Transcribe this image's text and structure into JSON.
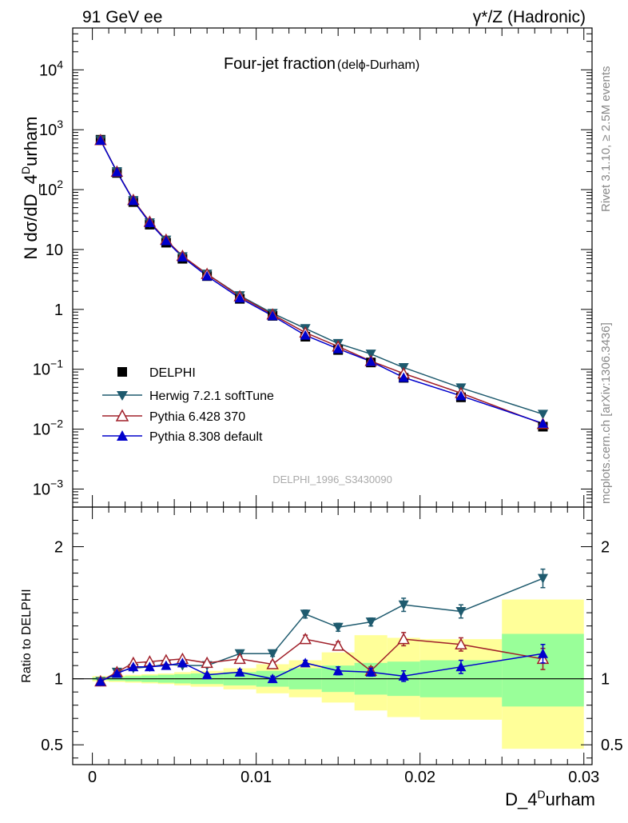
{
  "header": {
    "left": "91 GeV ee",
    "right": "γ*/Z (Hadronic)"
  },
  "side_text": {
    "top": "Rivet 3.1.10, ≥ 2.5M events",
    "bottom": "mcplots.cern.ch [arXiv:1306.3436]"
  },
  "watermark": "DELPHI_1996_S3430090",
  "colors": {
    "delphi": "#000000",
    "herwig": "#1e5a6e",
    "pythia6": "#a0202a",
    "pythia8": "#0000cc",
    "band_outer": "#ffff99",
    "band_inner": "#99ff99"
  },
  "chart_data": [
    {
      "type": "scatter",
      "title": "Four-jet fraction",
      "title_sub": "(delϕ-Durham)",
      "ylabel_main": "N dσ/dD_4",
      "ylabel_sup": "D",
      "ylabel_tail": "urham",
      "yscale": "log",
      "ylim": [
        0.0005,
        50000
      ],
      "xlim": [
        -0.0012,
        0.0305
      ],
      "y_ticks": [
        {
          "v": 10000,
          "base": "10",
          "exp": "4"
        },
        {
          "v": 1000,
          "base": "10",
          "exp": "3"
        },
        {
          "v": 100,
          "base": "10",
          "exp": "2"
        },
        {
          "v": 10,
          "base": "10",
          "exp": ""
        },
        {
          "v": 1,
          "base": "1",
          "exp": ""
        },
        {
          "v": 0.1,
          "base": "10",
          "exp": "−1"
        },
        {
          "v": 0.01,
          "base": "10",
          "exp": "−2"
        },
        {
          "v": 0.001,
          "base": "10",
          "exp": "−3"
        }
      ],
      "legend_position": "bottom-left",
      "series": [
        {
          "name": "DELPHI",
          "marker": "square",
          "x": [
            0.0005,
            0.0015,
            0.0025,
            0.0035,
            0.0045,
            0.0055,
            0.007,
            0.009,
            0.011,
            0.013,
            0.015,
            0.017,
            0.019,
            0.0225,
            0.0275
          ],
          "y": [
            680,
            190,
            62,
            26,
            13,
            7.0,
            3.6,
            1.5,
            0.78,
            0.35,
            0.21,
            0.13,
            0.072,
            0.034,
            0.011
          ]
        },
        {
          "name": "Herwig 7.2.1 softTune",
          "marker": "triangle-down",
          "x": [
            0.0005,
            0.0015,
            0.0025,
            0.0035,
            0.0045,
            0.0055,
            0.007,
            0.009,
            0.011,
            0.013,
            0.015,
            0.017,
            0.019,
            0.0225,
            0.0275
          ],
          "y": [
            670,
            200,
            66,
            28,
            14.4,
            7.6,
            3.9,
            1.7,
            0.86,
            0.48,
            0.27,
            0.18,
            0.107,
            0.049,
            0.0178
          ]
        },
        {
          "name": "Pythia 6.428 370",
          "marker": "triangle-up-open",
          "x": [
            0.0005,
            0.0015,
            0.0025,
            0.0035,
            0.0045,
            0.0055,
            0.007,
            0.009,
            0.011,
            0.013,
            0.015,
            0.017,
            0.019,
            0.0225,
            0.0275
          ],
          "y": [
            670,
            199,
            67,
            29,
            14.5,
            7.8,
            3.9,
            1.65,
            0.82,
            0.41,
            0.24,
            0.137,
            0.085,
            0.04,
            0.0122
          ]
        },
        {
          "name": "Pythia 8.308 default",
          "marker": "triangle-up",
          "x": [
            0.0005,
            0.0015,
            0.0025,
            0.0035,
            0.0045,
            0.0055,
            0.007,
            0.009,
            0.011,
            0.013,
            0.015,
            0.017,
            0.019,
            0.0225,
            0.0275
          ],
          "y": [
            665,
            197,
            65.5,
            28,
            14,
            7.5,
            3.6,
            1.55,
            0.78,
            0.37,
            0.22,
            0.135,
            0.073,
            0.036,
            0.0125
          ]
        }
      ]
    },
    {
      "type": "scatter",
      "ylabel": "Ratio to DELPHI",
      "xlabel_main": "D_4",
      "xlabel_sup": "D",
      "xlabel_tail": "urham",
      "ylim": [
        0.35,
        2.3
      ],
      "xlim": [
        -0.0012,
        0.0305
      ],
      "x_ticks": [
        0,
        0.01,
        0.02,
        0.03
      ],
      "x_tick_labels": [
        "0",
        "0.01",
        "0.02",
        "0.03"
      ],
      "y_ticks": [
        0.5,
        1,
        2
      ],
      "y_tick_labels": [
        "0.5",
        "1",
        "2"
      ],
      "bands": {
        "edges": [
          0,
          0.001,
          0.002,
          0.003,
          0.004,
          0.005,
          0.006,
          0.008,
          0.01,
          0.012,
          0.014,
          0.016,
          0.018,
          0.02,
          0.025,
          0.03
        ],
        "outer_low": [
          0.98,
          0.975,
          0.97,
          0.965,
          0.96,
          0.95,
          0.94,
          0.92,
          0.89,
          0.86,
          0.82,
          0.76,
          0.71,
          0.69,
          0.47
        ],
        "outer_high": [
          1.02,
          1.025,
          1.03,
          1.035,
          1.04,
          1.05,
          1.06,
          1.08,
          1.11,
          1.14,
          1.2,
          1.33,
          1.31,
          1.3,
          1.6
        ],
        "inner_low": [
          0.99,
          0.985,
          0.98,
          0.975,
          0.97,
          0.965,
          0.96,
          0.95,
          0.94,
          0.92,
          0.9,
          0.88,
          0.87,
          0.86,
          0.79
        ],
        "inner_high": [
          1.01,
          1.015,
          1.02,
          1.025,
          1.03,
          1.035,
          1.04,
          1.05,
          1.06,
          1.08,
          1.1,
          1.12,
          1.13,
          1.14,
          1.34
        ]
      },
      "series": [
        {
          "name": "Herwig 7.2.1 softTune",
          "x": [
            0.0005,
            0.0015,
            0.0025,
            0.0035,
            0.0045,
            0.0055,
            0.007,
            0.009,
            0.011,
            0.013,
            0.015,
            0.017,
            0.019,
            0.0225,
            0.0275
          ],
          "y": [
            0.98,
            1.05,
            1.08,
            1.09,
            1.11,
            1.1,
            1.1,
            1.19,
            1.19,
            1.49,
            1.39,
            1.43,
            1.56,
            1.51,
            1.76
          ],
          "err": [
            0.01,
            0.01,
            0.01,
            0.01,
            0.01,
            0.01,
            0.01,
            0.02,
            0.02,
            0.03,
            0.03,
            0.03,
            0.05,
            0.05,
            0.07
          ]
        },
        {
          "name": "Pythia 6.428 370",
          "x": [
            0.0005,
            0.0015,
            0.0025,
            0.0035,
            0.0045,
            0.0055,
            0.007,
            0.009,
            0.011,
            0.013,
            0.015,
            0.017,
            0.019,
            0.0225,
            0.0275
          ],
          "y": [
            0.98,
            1.05,
            1.12,
            1.13,
            1.14,
            1.15,
            1.12,
            1.15,
            1.11,
            1.3,
            1.25,
            1.06,
            1.3,
            1.26,
            1.15
          ],
          "err": [
            0.01,
            0.01,
            0.01,
            0.01,
            0.01,
            0.01,
            0.01,
            0.02,
            0.02,
            0.03,
            0.03,
            0.03,
            0.05,
            0.05,
            0.08
          ]
        },
        {
          "name": "Pythia 8.308 default",
          "x": [
            0.0005,
            0.0015,
            0.0025,
            0.0035,
            0.0045,
            0.0055,
            0.007,
            0.009,
            0.011,
            0.013,
            0.015,
            0.017,
            0.019,
            0.0225,
            0.0275
          ],
          "y": [
            0.98,
            1.04,
            1.09,
            1.09,
            1.1,
            1.12,
            1.03,
            1.05,
            1.0,
            1.12,
            1.06,
            1.05,
            1.02,
            1.09,
            1.19
          ],
          "err": [
            0.01,
            0.01,
            0.01,
            0.01,
            0.01,
            0.01,
            0.01,
            0.02,
            0.02,
            0.02,
            0.03,
            0.03,
            0.04,
            0.05,
            0.07
          ]
        }
      ]
    }
  ]
}
